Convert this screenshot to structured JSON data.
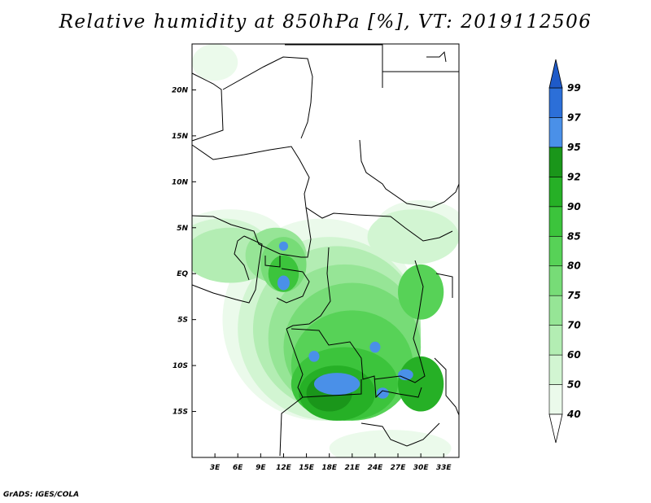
{
  "title": "Relative humidity at 850hPa [%], VT: 2019112506",
  "credit": "GrADS: IGES/COLA",
  "map": {
    "lon_range": [
      0,
      35
    ],
    "lat_range": [
      -20,
      25
    ],
    "lon_ticks": [
      {
        "value": 3,
        "label": "3E"
      },
      {
        "value": 6,
        "label": "6E"
      },
      {
        "value": 9,
        "label": "9E"
      },
      {
        "value": 12,
        "label": "12E"
      },
      {
        "value": 15,
        "label": "15E"
      },
      {
        "value": 18,
        "label": "18E"
      },
      {
        "value": 21,
        "label": "21E"
      },
      {
        "value": 24,
        "label": "24E"
      },
      {
        "value": 27,
        "label": "27E"
      },
      {
        "value": 30,
        "label": "30E"
      },
      {
        "value": 33,
        "label": "33E"
      }
    ],
    "lat_ticks": [
      {
        "value": 20,
        "label": "20N"
      },
      {
        "value": 15,
        "label": "15N"
      },
      {
        "value": 10,
        "label": "10N"
      },
      {
        "value": 5,
        "label": "5N"
      },
      {
        "value": 0,
        "label": "EQ"
      },
      {
        "value": -5,
        "label": "5S"
      },
      {
        "value": -10,
        "label": "10S"
      },
      {
        "value": -15,
        "label": "15S"
      }
    ]
  },
  "colorbar": {
    "levels": [
      {
        "label": "40",
        "color": "#ebfaeb"
      },
      {
        "label": "50",
        "color": "#d2f5d2"
      },
      {
        "label": "60",
        "color": "#b3edb3"
      },
      {
        "label": "70",
        "color": "#96e596"
      },
      {
        "label": "75",
        "color": "#77dc77"
      },
      {
        "label": "80",
        "color": "#57d257"
      },
      {
        "label": "85",
        "color": "#3cc43c"
      },
      {
        "label": "90",
        "color": "#26b026"
      },
      {
        "label": "92",
        "color": "#1a961a"
      },
      {
        "label": "95",
        "color": "#4a90e8"
      },
      {
        "label": "97",
        "color": "#2c6fd8"
      },
      {
        "label": "99",
        "color": "#1a4fc0"
      }
    ],
    "below_color": "#ffffff",
    "above_color": "#1e5ac8"
  },
  "humidity_field": [
    {
      "level": 0,
      "lon": 17,
      "lat": -5,
      "rx": 13,
      "ry": 11
    },
    {
      "level": 0,
      "lon": 5,
      "lat": 4,
      "rx": 7,
      "ry": 3
    },
    {
      "level": 0,
      "lon": 30,
      "lat": 5,
      "rx": 6,
      "ry": 3
    },
    {
      "level": 0,
      "lon": 3,
      "lat": 23,
      "rx": 3,
      "ry": 2
    },
    {
      "level": 0,
      "lon": 26,
      "lat": -19,
      "rx": 8,
      "ry": 2
    },
    {
      "level": 1,
      "lon": 18,
      "lat": -6,
      "rx": 12,
      "ry": 10
    },
    {
      "level": 1,
      "lon": 4,
      "lat": 3,
      "rx": 6,
      "ry": 3
    },
    {
      "level": 1,
      "lon": 29,
      "lat": 4,
      "rx": 6,
      "ry": 3
    },
    {
      "level": 2,
      "lon": 19,
      "lat": -6,
      "rx": 11,
      "ry": 9
    },
    {
      "level": 2,
      "lon": 5,
      "lat": 2,
      "rx": 6,
      "ry": 3
    },
    {
      "level": 3,
      "lon": 20,
      "lat": -7,
      "rx": 10,
      "ry": 8
    },
    {
      "level": 3,
      "lon": 11,
      "lat": 2,
      "rx": 4,
      "ry": 3
    },
    {
      "level": 4,
      "lon": 21,
      "lat": -8,
      "rx": 9,
      "ry": 7
    },
    {
      "level": 4,
      "lon": 12,
      "lat": 1,
      "rx": 3,
      "ry": 3
    },
    {
      "level": 5,
      "lon": 21,
      "lat": -10,
      "rx": 8,
      "ry": 6
    },
    {
      "level": 5,
      "lon": 30,
      "lat": -2,
      "rx": 3,
      "ry": 3
    },
    {
      "level": 6,
      "lon": 20,
      "lat": -12,
      "rx": 7,
      "ry": 4
    },
    {
      "level": 6,
      "lon": 12,
      "lat": 0,
      "rx": 2,
      "ry": 2
    },
    {
      "level": 7,
      "lon": 19,
      "lat": -13,
      "rx": 5,
      "ry": 3
    },
    {
      "level": 7,
      "lon": 30,
      "lat": -12,
      "rx": 3,
      "ry": 3
    },
    {
      "level": 8,
      "lon": 18,
      "lat": -13,
      "rx": 3,
      "ry": 2
    },
    {
      "level": 9,
      "lon": 19,
      "lat": -12,
      "rx": 3,
      "ry": 1.2
    },
    {
      "level": 9,
      "lon": 12,
      "lat": -1,
      "rx": 0.8,
      "ry": 0.8
    },
    {
      "level": 9,
      "lon": 12,
      "lat": 3,
      "rx": 0.6,
      "ry": 0.5
    },
    {
      "level": 9,
      "lon": 24,
      "lat": -8,
      "rx": 0.7,
      "ry": 0.6
    },
    {
      "level": 9,
      "lon": 28,
      "lat": -11,
      "rx": 1.0,
      "ry": 0.6
    },
    {
      "level": 9,
      "lon": 16,
      "lat": -9,
      "rx": 0.7,
      "ry": 0.6
    },
    {
      "level": 9,
      "lon": 25,
      "lat": -13,
      "rx": 0.8,
      "ry": 0.6
    }
  ]
}
